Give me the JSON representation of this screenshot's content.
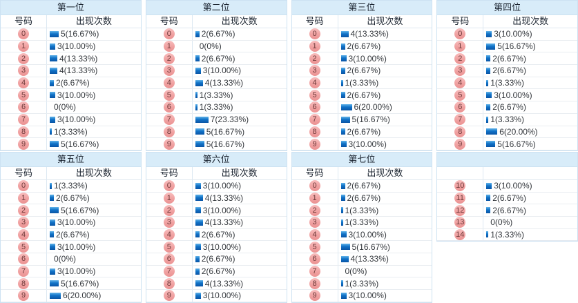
{
  "labels": {
    "number_header": "号码",
    "count_header": "出现次数"
  },
  "colors": {
    "title_bg": "#d8ecf9",
    "table_border": "#cde2f2",
    "bar_blue_top": "#63b4ea",
    "bar_blue_bottom": "#0a55a5",
    "badge_pink": "#f0a1a1",
    "badge_text": "#6d3a3a"
  },
  "chart_data": [
    {
      "type": "bar",
      "title": "第一位",
      "show_headers": true,
      "categories": [
        "0",
        "1",
        "2",
        "3",
        "4",
        "5",
        "6",
        "7",
        "8",
        "9"
      ],
      "values": [
        5,
        3,
        4,
        4,
        2,
        3,
        0,
        3,
        1,
        5
      ],
      "labels": [
        "5(16.67%)",
        "3(10.00%)",
        "4(13.33%)",
        "4(13.33%)",
        "2(6.67%)",
        "3(10.00%)",
        "0(0%)",
        "3(10.00%)",
        "1(3.33%)",
        "5(16.67%)"
      ]
    },
    {
      "type": "bar",
      "title": "第二位",
      "show_headers": true,
      "categories": [
        "0",
        "1",
        "2",
        "3",
        "4",
        "5",
        "6",
        "7",
        "8",
        "9"
      ],
      "values": [
        2,
        0,
        2,
        3,
        4,
        1,
        1,
        7,
        5,
        5
      ],
      "labels": [
        "2(6.67%)",
        "0(0%)",
        "2(6.67%)",
        "3(10.00%)",
        "4(13.33%)",
        "1(3.33%)",
        "1(3.33%)",
        "7(23.33%)",
        "5(16.67%)",
        "5(16.67%)"
      ]
    },
    {
      "type": "bar",
      "title": "第三位",
      "show_headers": true,
      "categories": [
        "0",
        "1",
        "2",
        "3",
        "4",
        "5",
        "6",
        "7",
        "8",
        "9"
      ],
      "values": [
        4,
        2,
        3,
        2,
        1,
        2,
        6,
        5,
        2,
        3
      ],
      "labels": [
        "4(13.33%)",
        "2(6.67%)",
        "3(10.00%)",
        "2(6.67%)",
        "1(3.33%)",
        "2(6.67%)",
        "6(20.00%)",
        "5(16.67%)",
        "2(6.67%)",
        "3(10.00%)"
      ]
    },
    {
      "type": "bar",
      "title": "第四位",
      "show_headers": true,
      "categories": [
        "0",
        "1",
        "2",
        "3",
        "4",
        "5",
        "6",
        "7",
        "8",
        "9"
      ],
      "values": [
        3,
        5,
        2,
        2,
        1,
        3,
        2,
        1,
        6,
        5
      ],
      "labels": [
        "3(10.00%)",
        "5(16.67%)",
        "2(6.67%)",
        "2(6.67%)",
        "1(3.33%)",
        "3(10.00%)",
        "2(6.67%)",
        "1(3.33%)",
        "6(20.00%)",
        "5(16.67%)"
      ]
    },
    {
      "type": "bar",
      "title": "第五位",
      "show_headers": true,
      "categories": [
        "0",
        "1",
        "2",
        "3",
        "4",
        "5",
        "6",
        "7",
        "8",
        "9"
      ],
      "values": [
        1,
        2,
        5,
        3,
        2,
        3,
        0,
        3,
        5,
        6
      ],
      "labels": [
        "1(3.33%)",
        "2(6.67%)",
        "5(16.67%)",
        "3(10.00%)",
        "2(6.67%)",
        "3(10.00%)",
        "0(0%)",
        "3(10.00%)",
        "5(16.67%)",
        "6(20.00%)"
      ]
    },
    {
      "type": "bar",
      "title": "第六位",
      "show_headers": true,
      "categories": [
        "0",
        "1",
        "2",
        "3",
        "4",
        "5",
        "6",
        "7",
        "8",
        "9"
      ],
      "values": [
        3,
        4,
        3,
        4,
        2,
        3,
        2,
        2,
        4,
        3
      ],
      "labels": [
        "3(10.00%)",
        "4(13.33%)",
        "3(10.00%)",
        "4(13.33%)",
        "2(6.67%)",
        "3(10.00%)",
        "2(6.67%)",
        "2(6.67%)",
        "4(13.33%)",
        "3(10.00%)"
      ]
    },
    {
      "type": "bar",
      "title": "第七位",
      "show_headers": true,
      "categories": [
        "0",
        "1",
        "2",
        "3",
        "4",
        "5",
        "6",
        "7",
        "8",
        "9"
      ],
      "values": [
        2,
        2,
        1,
        1,
        3,
        5,
        4,
        0,
        1,
        3
      ],
      "labels": [
        "2(6.67%)",
        "2(6.67%)",
        "1(3.33%)",
        "1(3.33%)",
        "3(10.00%)",
        "5(16.67%)",
        "4(13.33%)",
        "0(0%)",
        "1(3.33%)",
        "3(10.00%)"
      ]
    },
    {
      "type": "bar",
      "title": "",
      "show_headers": false,
      "categories": [
        "10",
        "11",
        "12",
        "13",
        "14"
      ],
      "values": [
        3,
        2,
        2,
        0,
        1
      ],
      "labels": [
        "3(10.00%)",
        "2(6.67%)",
        "2(6.67%)",
        "0(0%)",
        "1(3.33%)"
      ]
    }
  ]
}
